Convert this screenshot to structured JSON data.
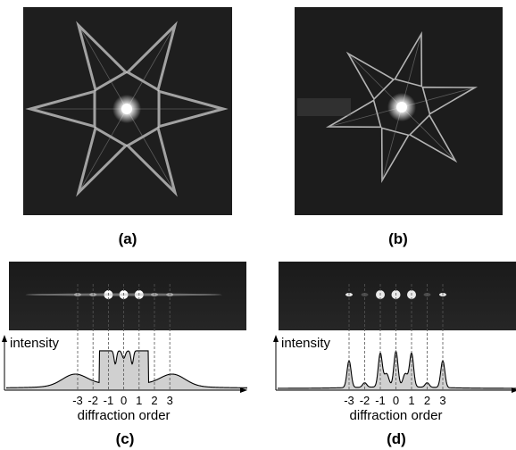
{
  "panels": [
    {
      "label": "(a)"
    },
    {
      "label": "(b)"
    },
    {
      "label": "(c)",
      "y_axis_label": "intensity",
      "x_axis_label": "diffraction order",
      "orders": [
        "-3",
        "-2",
        "-1",
        "0",
        "1",
        "2",
        "3"
      ]
    },
    {
      "label": "(d)",
      "y_axis_label": "intensity",
      "x_axis_label": "diffraction order",
      "orders": [
        "-3",
        "-2",
        "-1",
        "0",
        "1",
        "2",
        "3"
      ]
    }
  ]
}
